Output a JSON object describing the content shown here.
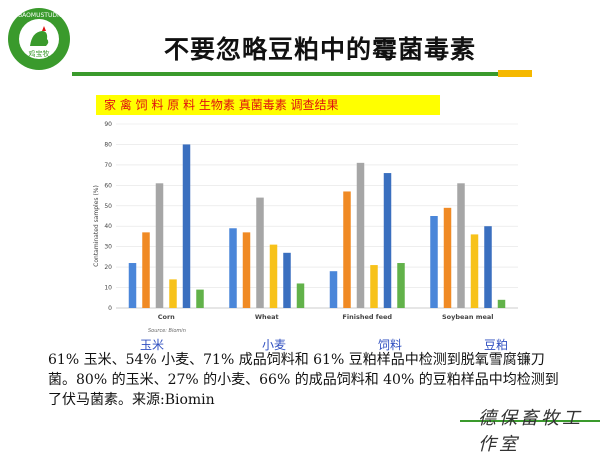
{
  "logo": {
    "ring_text": "JIBAOMUSTUDIO",
    "center_text": "鸡宝牧"
  },
  "title": "不要忽略豆粕中的霉菌毒素",
  "subtitle": "家 禽 饲 料 原 料    生物素 真菌毒素 调查结果",
  "cn_labels": [
    "玉米",
    "小麦",
    "饲料",
    "豆粕"
  ],
  "body_text": "61% 玉米、54% 小麦、71% 成品饲料和 61% 豆粕样品中检测到脱氧雪腐镰刀菌。80% 的玉米、27% 的小麦、66% 的成品饲料和 40% 的豆粕样品中均检测到了伏马菌素。来源:Biomin",
  "signature": "德保畜牧工作室",
  "colors": {
    "title_rule": "#3a9a2c",
    "accent": "#f5b800",
    "subtitle_bg": "#ffff00",
    "subtitle_text": "#e01010"
  },
  "chart_data": {
    "type": "bar",
    "ylabel": "Contaminated samples (%)",
    "ylim": [
      0,
      90
    ],
    "yticks": [
      0,
      10,
      20,
      30,
      40,
      50,
      60,
      70,
      80,
      90
    ],
    "source_note": "Source: Biomin",
    "categories": [
      "Corn",
      "Wheat",
      "Finished feed",
      "Soybean meal"
    ],
    "series": [
      {
        "color": "#4a86d9",
        "values": [
          22,
          39,
          18,
          45
        ]
      },
      {
        "color": "#f08a24",
        "values": [
          37,
          37,
          57,
          49
        ]
      },
      {
        "color": "#a6a6a6",
        "values": [
          61,
          54,
          71,
          61
        ]
      },
      {
        "color": "#f7c21a",
        "values": [
          14,
          31,
          21,
          36
        ]
      },
      {
        "color": "#3a6fbf",
        "values": [
          80,
          27,
          66,
          40
        ]
      },
      {
        "color": "#62b24a",
        "values": [
          9,
          12,
          22,
          4
        ]
      }
    ],
    "grid": true
  }
}
